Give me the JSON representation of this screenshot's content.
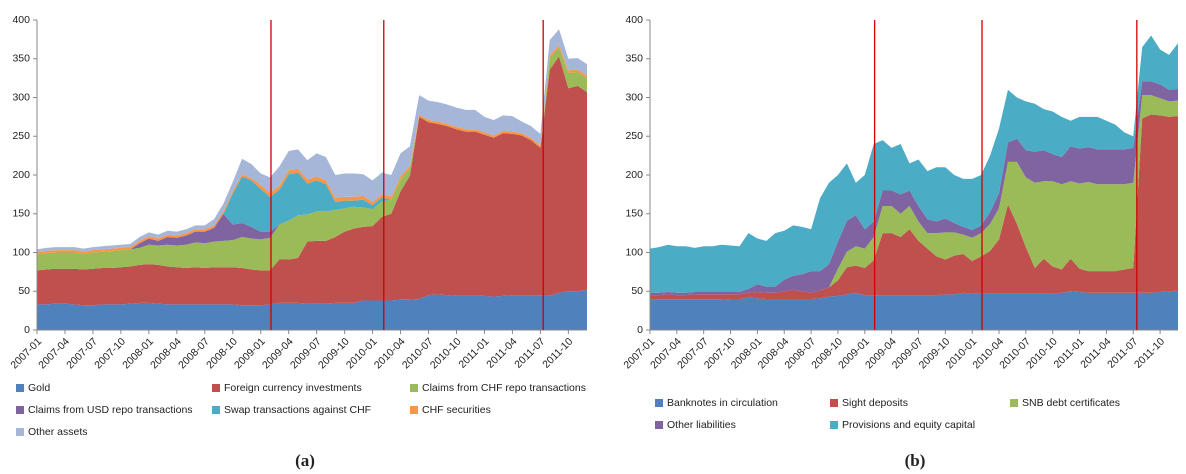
{
  "chart_data": [
    {
      "type": "stacked_area",
      "caption": "(a)",
      "categories": [
        "2007-01",
        null,
        null,
        "2007-04",
        null,
        null,
        "2007-07",
        null,
        null,
        "2007-10",
        null,
        null,
        "2008-01",
        null,
        null,
        "2008-04",
        null,
        null,
        "2008-07",
        null,
        null,
        "2008-10",
        null,
        null,
        "2009-01",
        null,
        null,
        "2009-04",
        null,
        null,
        "2009-07",
        null,
        null,
        "2009-10",
        null,
        null,
        "2010-01",
        null,
        null,
        "2010-04",
        null,
        null,
        "2010-07",
        null,
        null,
        "2010-10",
        null,
        null,
        "2011-01",
        null,
        null,
        "2011-04",
        null,
        null,
        "2011-07",
        null,
        null,
        "2011-10",
        null,
        null
      ],
      "ylim": [
        0,
        400
      ],
      "yticks": [
        0,
        50,
        100,
        150,
        200,
        250,
        300,
        350,
        400
      ],
      "grid": false,
      "series": [
        {
          "name": "Gold",
          "color": "#4f81bd",
          "values": [
            33,
            33,
            34,
            34,
            33,
            32,
            32,
            33,
            33,
            33,
            34,
            35,
            35,
            34,
            33,
            33,
            33,
            33,
            33,
            33,
            33,
            33,
            32,
            32,
            32,
            33,
            35,
            35,
            35,
            34,
            34,
            34,
            35,
            35,
            35,
            38,
            38,
            38,
            38,
            39,
            39,
            40,
            45,
            46,
            45,
            44,
            44,
            44,
            44,
            43,
            44,
            45,
            45,
            45,
            45,
            44,
            48,
            50,
            50,
            52
          ]
        },
        {
          "name": "Foreign currency investments",
          "color": "#c0504d",
          "values": [
            44,
            45,
            45,
            45,
            46,
            46,
            47,
            47,
            47,
            48,
            48,
            49,
            50,
            50,
            49,
            48,
            47,
            48,
            47,
            48,
            48,
            48,
            48,
            46,
            45,
            44,
            56,
            56,
            58,
            80,
            81,
            81,
            85,
            92,
            96,
            95,
            96,
            108,
            112,
            140,
            160,
            235,
            223,
            220,
            218,
            215,
            212,
            212,
            208,
            205,
            210,
            208,
            206,
            200,
            190,
            292,
            305,
            262,
            265,
            255
          ]
        },
        {
          "name": "Claims from CHF repo transactions",
          "color": "#9bbb59",
          "values": [
            20,
            21,
            21,
            21,
            21,
            20,
            21,
            21,
            22,
            22,
            22,
            22,
            25,
            25,
            28,
            28,
            30,
            32,
            32,
            33,
            34,
            35,
            40,
            40,
            40,
            42,
            45,
            50,
            55,
            35,
            38,
            38,
            35,
            30,
            28,
            25,
            22,
            20,
            18,
            15,
            10,
            0,
            0,
            0,
            0,
            0,
            0,
            0,
            0,
            0,
            0,
            0,
            0,
            0,
            0,
            15,
            12,
            20,
            18,
            18
          ]
        },
        {
          "name": "Claims from USD repo transactions",
          "color": "#8064a2",
          "values": [
            0,
            0,
            0,
            0,
            0,
            0,
            0,
            0,
            0,
            0,
            0,
            6,
            8,
            6,
            10,
            10,
            12,
            14,
            15,
            18,
            35,
            20,
            18,
            15,
            10,
            8,
            0,
            0,
            0,
            0,
            0,
            0,
            0,
            0,
            0,
            0,
            0,
            0,
            0,
            0,
            0,
            0,
            0,
            0,
            0,
            0,
            0,
            0,
            0,
            0,
            0,
            0,
            0,
            0,
            0,
            0,
            0,
            0,
            0,
            0
          ]
        },
        {
          "name": "Swap transactions against CHF",
          "color": "#4bacc6",
          "values": [
            0,
            0,
            0,
            0,
            0,
            0,
            0,
            0,
            0,
            0,
            0,
            0,
            0,
            0,
            0,
            0,
            0,
            0,
            0,
            0,
            0,
            40,
            60,
            60,
            55,
            45,
            45,
            60,
            55,
            40,
            40,
            35,
            10,
            10,
            8,
            10,
            5,
            5,
            0,
            0,
            0,
            0,
            0,
            0,
            0,
            0,
            0,
            0,
            0,
            0,
            0,
            0,
            0,
            0,
            0,
            0,
            0,
            0,
            0,
            0
          ]
        },
        {
          "name": "CHF securities",
          "color": "#f79646",
          "values": [
            3,
            3,
            3,
            3,
            3,
            3,
            3,
            3,
            3,
            3,
            3,
            3,
            3,
            3,
            3,
            3,
            3,
            3,
            3,
            3,
            3,
            3,
            3,
            3,
            5,
            5,
            5,
            5,
            5,
            5,
            5,
            5,
            5,
            5,
            5,
            5,
            4,
            4,
            4,
            4,
            3,
            3,
            3,
            3,
            3,
            3,
            3,
            3,
            3,
            3,
            3,
            3,
            3,
            3,
            3,
            3,
            3,
            3,
            3,
            3
          ]
        },
        {
          "name": "Other assets",
          "color": "#a5b6d9",
          "values": [
            4,
            4,
            4,
            4,
            4,
            4,
            4,
            4,
            4,
            4,
            4,
            5,
            5,
            5,
            5,
            5,
            5,
            5,
            5,
            8,
            10,
            12,
            20,
            18,
            15,
            20,
            25,
            25,
            25,
            25,
            30,
            30,
            30,
            30,
            30,
            28,
            28,
            28,
            28,
            30,
            25,
            25,
            25,
            25,
            25,
            25,
            25,
            25,
            20,
            20,
            20,
            20,
            15,
            15,
            15,
            20,
            20,
            15,
            15,
            15
          ]
        }
      ]
    },
    {
      "type": "stacked_area",
      "caption": "(b)",
      "categories": [
        "2007-01",
        null,
        null,
        "2007-04",
        null,
        null,
        "2007-07",
        null,
        null,
        "2007-10",
        null,
        null,
        "2008-01",
        null,
        null,
        "2008-04",
        null,
        null,
        "2008-07",
        null,
        null,
        "2008-10",
        null,
        null,
        "2009-01",
        null,
        null,
        "2009-04",
        null,
        null,
        "2009-07",
        null,
        null,
        "2009-10",
        null,
        null,
        "2010-01",
        null,
        null,
        "2010-04",
        null,
        null,
        "2010-07",
        null,
        null,
        "2010-10",
        null,
        null,
        "2011-01",
        null,
        null,
        "2011-04",
        null,
        null,
        "2011-07",
        null,
        null,
        "2011-10",
        null,
        null
      ],
      "ylim": [
        0,
        400
      ],
      "yticks": [
        0,
        50,
        100,
        150,
        200,
        250,
        300,
        350,
        400
      ],
      "grid": false,
      "series": [
        {
          "name": "Banknotes in circulation",
          "color": "#4f81bd",
          "values": [
            39,
            39,
            39,
            39,
            39,
            39,
            39,
            39,
            39,
            40,
            40,
            42,
            41,
            40,
            40,
            40,
            40,
            40,
            40,
            41,
            43,
            44,
            46,
            48,
            45,
            45,
            45,
            45,
            45,
            45,
            45,
            45,
            45,
            46,
            46,
            48,
            47,
            47,
            47,
            47,
            47,
            47,
            47,
            47,
            47,
            47,
            48,
            50,
            49,
            48,
            48,
            48,
            48,
            48,
            48,
            48,
            48,
            49,
            50,
            51
          ]
        },
        {
          "name": "Sight deposits",
          "color": "#c0504d",
          "values": [
            6,
            6,
            7,
            6,
            6,
            7,
            7,
            7,
            7,
            6,
            6,
            6,
            8,
            8,
            8,
            10,
            12,
            10,
            8,
            10,
            12,
            20,
            35,
            35,
            35,
            45,
            80,
            80,
            75,
            85,
            70,
            60,
            50,
            45,
            50,
            50,
            42,
            48,
            55,
            70,
            115,
            90,
            60,
            33,
            45,
            35,
            30,
            42,
            30,
            28,
            28,
            28,
            28,
            30,
            32,
            225,
            230,
            228,
            225,
            225
          ]
        },
        {
          "name": "SNB debt certificates",
          "color": "#9bbb59",
          "values": [
            0,
            0,
            0,
            0,
            0,
            0,
            0,
            0,
            0,
            0,
            0,
            0,
            0,
            0,
            0,
            0,
            0,
            0,
            0,
            0,
            0,
            15,
            20,
            25,
            25,
            30,
            35,
            35,
            30,
            30,
            25,
            20,
            30,
            35,
            30,
            25,
            30,
            30,
            35,
            40,
            55,
            80,
            90,
            110,
            100,
            110,
            110,
            100,
            110,
            115,
            112,
            112,
            112,
            110,
            110,
            30,
            25,
            22,
            20,
            20
          ]
        },
        {
          "name": "Other liabilities",
          "color": "#8064a2",
          "values": [
            3,
            3,
            3,
            3,
            3,
            3,
            3,
            3,
            3,
            3,
            3,
            5,
            10,
            8,
            8,
            15,
            18,
            22,
            28,
            25,
            30,
            35,
            40,
            40,
            25,
            20,
            20,
            20,
            25,
            20,
            20,
            18,
            15,
            18,
            12,
            10,
            10,
            10,
            15,
            20,
            25,
            30,
            35,
            40,
            40,
            35,
            35,
            45,
            45,
            45,
            45,
            45,
            45,
            45,
            45,
            18,
            18,
            18,
            15,
            15
          ]
        },
        {
          "name": "Provisions and equity capital",
          "color": "#4bacc6",
          "values": [
            57,
            59,
            61,
            60,
            60,
            57,
            59,
            59,
            61,
            60,
            59,
            72,
            59,
            59,
            69,
            63,
            65,
            61,
            54,
            94,
            105,
            86,
            74,
            42,
            70,
            100,
            65,
            55,
            65,
            35,
            60,
            62,
            70,
            66,
            62,
            62,
            66,
            65,
            73,
            83,
            68,
            53,
            63,
            62,
            53,
            55,
            52,
            33,
            41,
            39,
            42,
            37,
            32,
            22,
            15,
            44,
            59,
            45,
            45,
            59
          ]
        }
      ]
    }
  ]
}
